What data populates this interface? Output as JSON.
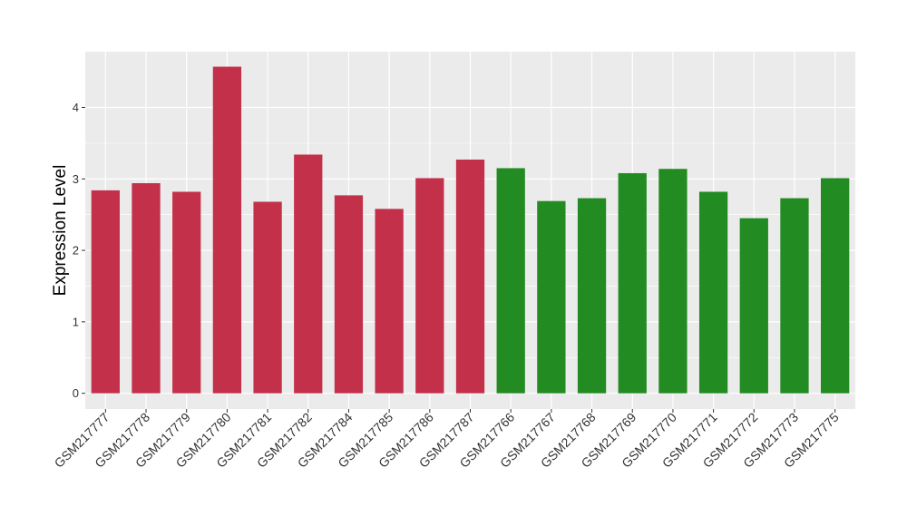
{
  "chart_data": {
    "type": "bar",
    "title": "",
    "xlabel": "",
    "ylabel": "Expression Level",
    "ylim": [
      -0.22,
      4.78
    ],
    "yticks": [
      0,
      1,
      2,
      3,
      4
    ],
    "grid": true,
    "legend": "none",
    "categories": [
      "GSM217777",
      "GSM217778",
      "GSM217779",
      "GSM217780",
      "GSM217781",
      "GSM217782",
      "GSM217784",
      "GSM217785",
      "GSM217786",
      "GSM217787",
      "GSM217766",
      "GSM217767",
      "GSM217768",
      "GSM217769",
      "GSM217770",
      "GSM217771",
      "GSM217772",
      "GSM217773",
      "GSM217775"
    ],
    "values": [
      2.84,
      2.94,
      2.82,
      4.57,
      2.68,
      3.34,
      2.77,
      2.58,
      3.01,
      3.27,
      3.15,
      2.69,
      2.73,
      3.08,
      3.14,
      2.82,
      2.45,
      2.73,
      3.01
    ],
    "groups": [
      "red",
      "red",
      "red",
      "red",
      "red",
      "red",
      "red",
      "red",
      "red",
      "red",
      "green",
      "green",
      "green",
      "green",
      "green",
      "green",
      "green",
      "green",
      "green"
    ],
    "colors": {
      "red": "#c3304a",
      "green": "#228b22",
      "panel": "#ebebeb",
      "grid": "#ffffff"
    }
  }
}
